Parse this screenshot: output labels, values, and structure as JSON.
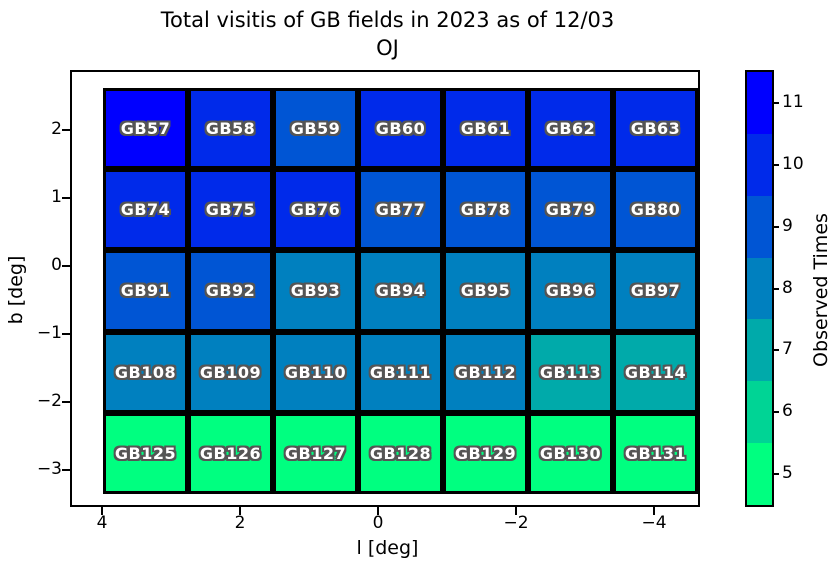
{
  "title": {
    "line1": "Total visitis of GB fields in 2023 as of 12/03",
    "line2": "OJ"
  },
  "axes": {
    "xlabel": "l [deg]",
    "ylabel": "b [deg]",
    "x_tick_labels": [
      "4",
      "2",
      "0",
      "−2",
      "−4"
    ],
    "y_tick_labels": [
      "2",
      "1",
      "0",
      "−1",
      "−2",
      "−3"
    ]
  },
  "colorbar": {
    "label": "Observed Times",
    "tick_labels_top_to_bottom": [
      "11",
      "10",
      "9",
      "8",
      "7",
      "6",
      "5"
    ]
  },
  "chart_data": {
    "type": "heatmap",
    "title": "Total visitis of GB fields in 2023 as of 12/03 OJ",
    "xlabel": "l [deg]",
    "ylabel": "b [deg]",
    "x_ticks": [
      4,
      2,
      0,
      -2,
      -4
    ],
    "y_ticks": [
      2,
      1,
      0,
      -1,
      -2,
      -3
    ],
    "x_axis_inverted": true,
    "colorbar_label": "Observed Times",
    "colorbar_ticks": [
      5,
      6,
      7,
      8,
      9,
      10,
      11
    ],
    "value_range": [
      4.5,
      11.5
    ],
    "colormap": "winter_r, 7 discrete levels",
    "value_colors": {
      "5": "#00FF80",
      "6": "#00D495",
      "7": "#00AAAA",
      "8": "#0080BF",
      "9": "#0055D4",
      "10": "#002AEA",
      "11": "#0000FF"
    },
    "rows": [
      {
        "fields": [
          "GB57",
          "GB58",
          "GB59",
          "GB60",
          "GB61",
          "GB62",
          "GB63"
        ],
        "values": [
          11,
          10,
          9,
          10,
          10,
          10,
          10
        ]
      },
      {
        "fields": [
          "GB74",
          "GB75",
          "GB76",
          "GB77",
          "GB78",
          "GB79",
          "GB80"
        ],
        "values": [
          10,
          10,
          10,
          9,
          9,
          9,
          9
        ]
      },
      {
        "fields": [
          "GB91",
          "GB92",
          "GB93",
          "GB94",
          "GB95",
          "GB96",
          "GB97"
        ],
        "values": [
          9,
          9,
          8,
          8,
          8,
          8,
          8
        ]
      },
      {
        "fields": [
          "GB108",
          "GB109",
          "GB110",
          "GB111",
          "GB112",
          "GB113",
          "GB114"
        ],
        "values": [
          8,
          8,
          8,
          8,
          8,
          7,
          7
        ]
      },
      {
        "fields": [
          "GB125",
          "GB126",
          "GB127",
          "GB128",
          "GB129",
          "GB130",
          "GB131"
        ],
        "values": [
          5,
          5,
          5,
          5,
          5,
          5,
          5
        ]
      }
    ]
  }
}
